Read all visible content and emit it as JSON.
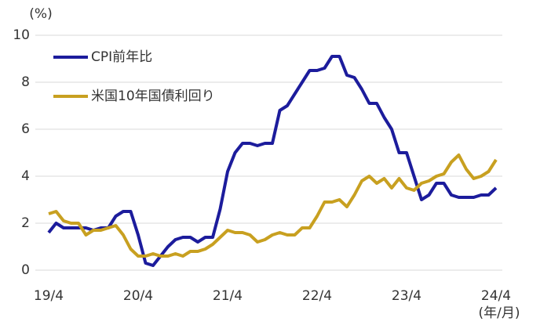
{
  "chart_data": {
    "type": "line",
    "y_unit": "(%)",
    "x_unit": "(年/月)",
    "categories": [
      "19/4",
      null,
      null,
      null,
      null,
      null,
      null,
      null,
      null,
      null,
      null,
      null,
      "20/4",
      null,
      null,
      null,
      null,
      null,
      null,
      null,
      null,
      null,
      null,
      null,
      "21/4",
      null,
      null,
      null,
      null,
      null,
      null,
      null,
      null,
      null,
      null,
      null,
      "22/4",
      null,
      null,
      null,
      null,
      null,
      null,
      null,
      null,
      null,
      null,
      null,
      "23/4",
      null,
      null,
      null,
      null,
      null,
      null,
      null,
      null,
      null,
      null,
      null,
      "24/4"
    ],
    "series": [
      {
        "name": "CPI前年比",
        "color": "#1c1c9c",
        "values": [
          1.6,
          2.0,
          1.8,
          1.8,
          1.8,
          1.8,
          1.7,
          1.8,
          1.8,
          2.3,
          2.5,
          2.5,
          1.5,
          0.3,
          0.2,
          0.6,
          1.0,
          1.3,
          1.4,
          1.4,
          1.2,
          1.4,
          1.4,
          2.6,
          4.2,
          5.0,
          5.4,
          5.4,
          5.3,
          5.4,
          5.4,
          6.8,
          7.0,
          7.5,
          8.0,
          8.5,
          8.5,
          8.6,
          9.1,
          9.1,
          8.3,
          8.2,
          7.7,
          7.1,
          7.1,
          6.5,
          6.0,
          5.0,
          5.0,
          4.0,
          3.0,
          3.2,
          3.7,
          3.7,
          3.2,
          3.1,
          3.1,
          3.1,
          3.2,
          3.2,
          3.5
        ]
      },
      {
        "name": "米国10年国債利回り",
        "color": "#c8a020",
        "values": [
          2.4,
          2.5,
          2.1,
          2.0,
          2.0,
          1.5,
          1.7,
          1.7,
          1.8,
          1.9,
          1.5,
          0.9,
          0.6,
          0.6,
          0.7,
          0.6,
          0.6,
          0.7,
          0.6,
          0.8,
          0.8,
          0.9,
          1.1,
          1.4,
          1.7,
          1.6,
          1.6,
          1.5,
          1.2,
          1.3,
          1.5,
          1.6,
          1.5,
          1.5,
          1.8,
          1.8,
          2.3,
          2.9,
          2.9,
          3.0,
          2.7,
          3.2,
          3.8,
          4.0,
          3.7,
          3.9,
          3.5,
          3.9,
          3.5,
          3.4,
          3.7,
          3.8,
          4.0,
          4.1,
          4.6,
          4.9,
          4.3,
          3.9,
          4.0,
          4.2,
          4.7
        ]
      }
    ],
    "ylim": [
      0,
      10
    ],
    "yticks": [
      0,
      2,
      4,
      6,
      8,
      10
    ],
    "grid": true,
    "legend": "upper left"
  }
}
